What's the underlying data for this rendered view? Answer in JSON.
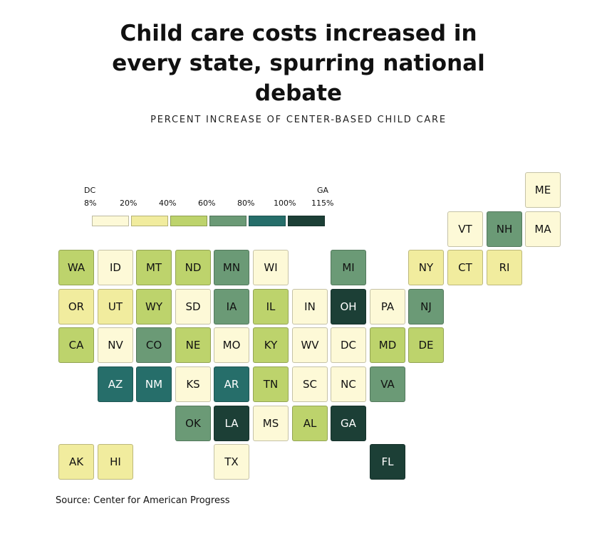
{
  "title_lines": [
    "Child care costs increased in",
    "every state, spurring national",
    "debate"
  ],
  "subtitle": "PERCENT INCREASE OF CENTER-BASED CHILD CARE",
  "source": "Source: Center for American Progress",
  "legend": {
    "min_state": "DC",
    "max_state": "GA",
    "ticks": [
      "8%",
      "20%",
      "40%",
      "60%",
      "80%",
      "100%",
      "115%"
    ],
    "colors": [
      "#fdf9d7",
      "#f1ec9e",
      "#bdd36c",
      "#6b9a76",
      "#266e6a",
      "#1c3f36"
    ]
  },
  "chart_data": {
    "type": "heatmap",
    "title": "Child care costs increased in every state, spurring national debate",
    "subtitle": "PERCENT INCREASE OF CENTER-BASED CHILD CARE",
    "bins": [
      {
        "range": "8%–20%",
        "color": "#fdf9d7"
      },
      {
        "range": "20%–40%",
        "color": "#f1ec9e"
      },
      {
        "range": "40%–60%",
        "color": "#bdd36c"
      },
      {
        "range": "60%–80%",
        "color": "#6b9a76"
      },
      {
        "range": "80%–100%",
        "color": "#266e6a"
      },
      {
        "range": "100%–115%",
        "color": "#1c3f36"
      }
    ],
    "extremes": {
      "min": {
        "state": "DC",
        "value": 8
      },
      "max": {
        "state": "GA",
        "value": 115
      }
    },
    "states": [
      {
        "abbr": "ME",
        "row": 0,
        "col": 12,
        "bin": 0
      },
      {
        "abbr": "VT",
        "row": 1,
        "col": 10,
        "bin": 0
      },
      {
        "abbr": "NH",
        "row": 1,
        "col": 11,
        "bin": 3
      },
      {
        "abbr": "MA",
        "row": 1,
        "col": 12,
        "bin": 0
      },
      {
        "abbr": "WA",
        "row": 2,
        "col": 0,
        "bin": 2
      },
      {
        "abbr": "ID",
        "row": 2,
        "col": 1,
        "bin": 0
      },
      {
        "abbr": "MT",
        "row": 2,
        "col": 2,
        "bin": 2
      },
      {
        "abbr": "ND",
        "row": 2,
        "col": 3,
        "bin": 2
      },
      {
        "abbr": "MN",
        "row": 2,
        "col": 4,
        "bin": 3
      },
      {
        "abbr": "WI",
        "row": 2,
        "col": 5,
        "bin": 0
      },
      {
        "abbr": "MI",
        "row": 2,
        "col": 7,
        "bin": 3
      },
      {
        "abbr": "NY",
        "row": 2,
        "col": 9,
        "bin": 1
      },
      {
        "abbr": "CT",
        "row": 2,
        "col": 10,
        "bin": 1
      },
      {
        "abbr": "RI",
        "row": 2,
        "col": 11,
        "bin": 1
      },
      {
        "abbr": "OR",
        "row": 3,
        "col": 0,
        "bin": 1
      },
      {
        "abbr": "UT",
        "row": 3,
        "col": 1,
        "bin": 1
      },
      {
        "abbr": "WY",
        "row": 3,
        "col": 2,
        "bin": 2
      },
      {
        "abbr": "SD",
        "row": 3,
        "col": 3,
        "bin": 0
      },
      {
        "abbr": "IA",
        "row": 3,
        "col": 4,
        "bin": 3
      },
      {
        "abbr": "IL",
        "row": 3,
        "col": 5,
        "bin": 2
      },
      {
        "abbr": "IN",
        "row": 3,
        "col": 6,
        "bin": 0
      },
      {
        "abbr": "OH",
        "row": 3,
        "col": 7,
        "bin": 5
      },
      {
        "abbr": "PA",
        "row": 3,
        "col": 8,
        "bin": 0
      },
      {
        "abbr": "NJ",
        "row": 3,
        "col": 9,
        "bin": 3
      },
      {
        "abbr": "CA",
        "row": 4,
        "col": 0,
        "bin": 2
      },
      {
        "abbr": "NV",
        "row": 4,
        "col": 1,
        "bin": 0
      },
      {
        "abbr": "CO",
        "row": 4,
        "col": 2,
        "bin": 3
      },
      {
        "abbr": "NE",
        "row": 4,
        "col": 3,
        "bin": 2
      },
      {
        "abbr": "MO",
        "row": 4,
        "col": 4,
        "bin": 0
      },
      {
        "abbr": "KY",
        "row": 4,
        "col": 5,
        "bin": 2
      },
      {
        "abbr": "WV",
        "row": 4,
        "col": 6,
        "bin": 0
      },
      {
        "abbr": "DC",
        "row": 4,
        "col": 7,
        "bin": 0
      },
      {
        "abbr": "MD",
        "row": 4,
        "col": 8,
        "bin": 2
      },
      {
        "abbr": "DE",
        "row": 4,
        "col": 9,
        "bin": 2
      },
      {
        "abbr": "AZ",
        "row": 5,
        "col": 1,
        "bin": 4
      },
      {
        "abbr": "NM",
        "row": 5,
        "col": 2,
        "bin": 4
      },
      {
        "abbr": "KS",
        "row": 5,
        "col": 3,
        "bin": 0
      },
      {
        "abbr": "AR",
        "row": 5,
        "col": 4,
        "bin": 4
      },
      {
        "abbr": "TN",
        "row": 5,
        "col": 5,
        "bin": 2
      },
      {
        "abbr": "SC",
        "row": 5,
        "col": 6,
        "bin": 0
      },
      {
        "abbr": "NC",
        "row": 5,
        "col": 7,
        "bin": 0
      },
      {
        "abbr": "VA",
        "row": 5,
        "col": 8,
        "bin": 3
      },
      {
        "abbr": "OK",
        "row": 6,
        "col": 3,
        "bin": 3
      },
      {
        "abbr": "LA",
        "row": 6,
        "col": 4,
        "bin": 5
      },
      {
        "abbr": "MS",
        "row": 6,
        "col": 5,
        "bin": 0
      },
      {
        "abbr": "AL",
        "row": 6,
        "col": 6,
        "bin": 2
      },
      {
        "abbr": "GA",
        "row": 6,
        "col": 7,
        "bin": 5
      },
      {
        "abbr": "AK",
        "row": 7,
        "col": 0,
        "bin": 1
      },
      {
        "abbr": "HI",
        "row": 7,
        "col": 1,
        "bin": 1
      },
      {
        "abbr": "TX",
        "row": 7,
        "col": 4,
        "bin": 0
      },
      {
        "abbr": "FL",
        "row": 7,
        "col": 8,
        "bin": 5
      }
    ]
  }
}
